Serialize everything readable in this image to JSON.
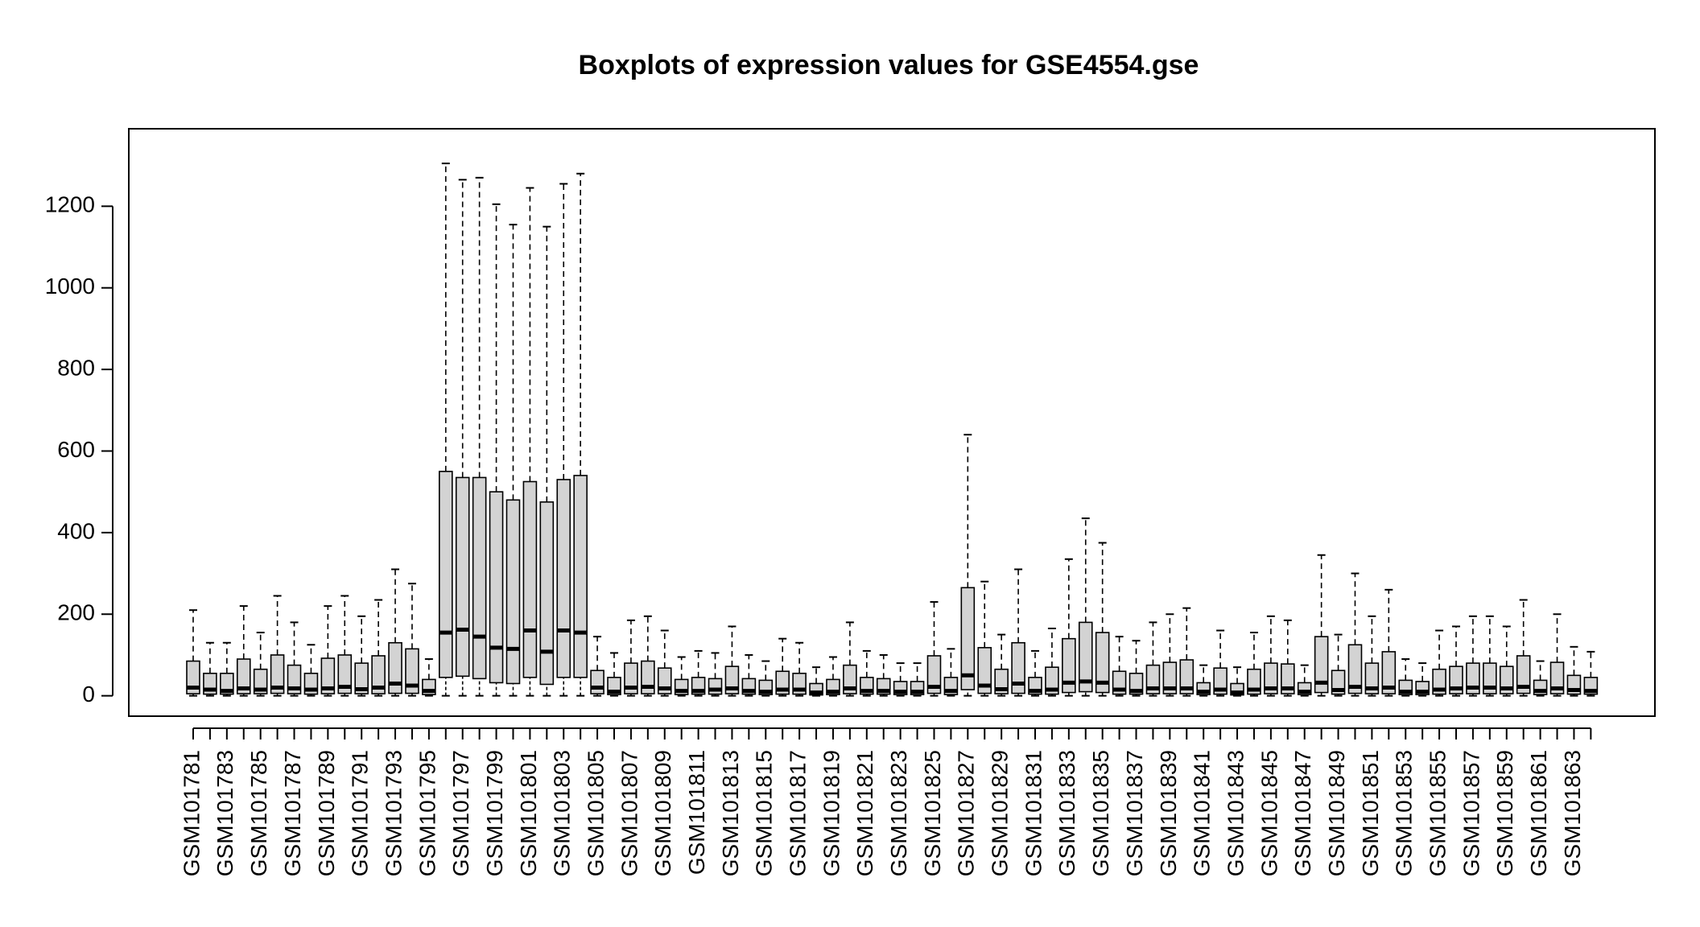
{
  "chart_data": {
    "type": "boxplot",
    "title": "Boxplots of expression values for GSE4554.gse",
    "xlabel": "",
    "ylabel": "",
    "ylim": [
      -50,
      1390
    ],
    "yticks": [
      0,
      200,
      400,
      600,
      800,
      1000,
      1200
    ],
    "grid": false,
    "legend": "none",
    "box_fill": "#d3d3d3",
    "line_color": "#000000",
    "categories": [
      "GSM101781",
      "GSM101782",
      "GSM101783",
      "GSM101784",
      "GSM101785",
      "GSM101786",
      "GSM101787",
      "GSM101788",
      "GSM101789",
      "GSM101790",
      "GSM101791",
      "GSM101792",
      "GSM101793",
      "GSM101794",
      "GSM101795",
      "GSM101796",
      "GSM101797",
      "GSM101798",
      "GSM101799",
      "GSM101800",
      "GSM101801",
      "GSM101802",
      "GSM101803",
      "GSM101804",
      "GSM101805",
      "GSM101806",
      "GSM101807",
      "GSM101808",
      "GSM101809",
      "GSM101810",
      "GSM101811",
      "GSM101812",
      "GSM101813",
      "GSM101814",
      "GSM101815",
      "GSM101816",
      "GSM101817",
      "GSM101818",
      "GSM101819",
      "GSM101820",
      "GSM101821",
      "GSM101822",
      "GSM101823",
      "GSM101824",
      "GSM101825",
      "GSM101826",
      "GSM101827",
      "GSM101828",
      "GSM101829",
      "GSM101830",
      "GSM101831",
      "GSM101832",
      "GSM101833",
      "GSM101834",
      "GSM101835",
      "GSM101836",
      "GSM101837",
      "GSM101838",
      "GSM101839",
      "GSM101840",
      "GSM101841",
      "GSM101842",
      "GSM101843",
      "GSM101844",
      "GSM101845",
      "GSM101846",
      "GSM101847",
      "GSM101848",
      "GSM101849",
      "GSM101850",
      "GSM101851",
      "GSM101852",
      "GSM101853",
      "GSM101854",
      "GSM101855",
      "GSM101856",
      "GSM101857",
      "GSM101858",
      "GSM101859",
      "GSM101860",
      "GSM101861",
      "GSM101862",
      "GSM101863",
      "GSM101864"
    ],
    "visible_tick_labels": [
      "GSM101781",
      "GSM101783",
      "GSM101785",
      "GSM101787",
      "GSM101789",
      "GSM101791",
      "GSM101793",
      "GSM101795",
      "GSM101797",
      "GSM101799",
      "GSM101801",
      "GSM101803",
      "GSM101805",
      "GSM101807",
      "GSM101809",
      "GSM101811",
      "GSM101813",
      "GSM101815",
      "GSM101817",
      "GSM101819",
      "GSM101821",
      "GSM101823",
      "GSM101825",
      "GSM101827",
      "GSM101829",
      "GSM101831",
      "GSM101833",
      "GSM101835",
      "GSM101837",
      "GSM101839",
      "GSM101841",
      "GSM101843",
      "GSM101845",
      "GSM101847",
      "GSM101849",
      "GSM101851",
      "GSM101853",
      "GSM101855",
      "GSM101857",
      "GSM101859",
      "GSM101861",
      "GSM101863"
    ],
    "boxes": [
      [
        0,
        5,
        20,
        85,
        210
      ],
      [
        0,
        4,
        15,
        55,
        130
      ],
      [
        0,
        4,
        12,
        55,
        130
      ],
      [
        0,
        5,
        18,
        90,
        220
      ],
      [
        0,
        5,
        15,
        65,
        155
      ],
      [
        0,
        6,
        20,
        100,
        245
      ],
      [
        0,
        5,
        18,
        75,
        180
      ],
      [
        0,
        4,
        15,
        55,
        125
      ],
      [
        0,
        5,
        18,
        92,
        220
      ],
      [
        0,
        6,
        22,
        100,
        245
      ],
      [
        0,
        5,
        16,
        80,
        195
      ],
      [
        0,
        5,
        20,
        98,
        235
      ],
      [
        0,
        6,
        30,
        130,
        310
      ],
      [
        0,
        6,
        25,
        115,
        275
      ],
      [
        0,
        3,
        12,
        40,
        90
      ],
      [
        0,
        45,
        155,
        550,
        1305
      ],
      [
        0,
        48,
        162,
        535,
        1265
      ],
      [
        0,
        42,
        145,
        535,
        1270
      ],
      [
        0,
        32,
        118,
        500,
        1205
      ],
      [
        0,
        30,
        115,
        480,
        1155
      ],
      [
        0,
        45,
        160,
        525,
        1245
      ],
      [
        0,
        28,
        108,
        475,
        1150
      ],
      [
        0,
        45,
        160,
        530,
        1255
      ],
      [
        0,
        45,
        155,
        540,
        1280
      ],
      [
        0,
        5,
        20,
        62,
        145
      ],
      [
        0,
        3,
        10,
        45,
        105
      ],
      [
        0,
        5,
        20,
        80,
        185
      ],
      [
        0,
        5,
        22,
        85,
        195
      ],
      [
        0,
        5,
        18,
        68,
        160
      ],
      [
        0,
        3,
        12,
        40,
        95
      ],
      [
        0,
        4,
        12,
        45,
        110
      ],
      [
        0,
        4,
        15,
        42,
        105
      ],
      [
        0,
        5,
        18,
        72,
        170
      ],
      [
        0,
        4,
        12,
        42,
        100
      ],
      [
        0,
        3,
        10,
        38,
        85
      ],
      [
        0,
        4,
        15,
        60,
        140
      ],
      [
        0,
        4,
        15,
        55,
        130
      ],
      [
        0,
        2,
        8,
        30,
        70
      ],
      [
        0,
        3,
        10,
        40,
        95
      ],
      [
        0,
        5,
        18,
        75,
        180
      ],
      [
        0,
        4,
        12,
        45,
        110
      ],
      [
        0,
        4,
        12,
        42,
        100
      ],
      [
        0,
        3,
        10,
        35,
        80
      ],
      [
        0,
        3,
        10,
        35,
        80
      ],
      [
        0,
        6,
        22,
        98,
        230
      ],
      [
        0,
        3,
        12,
        45,
        115
      ],
      [
        0,
        15,
        50,
        265,
        640
      ],
      [
        0,
        6,
        25,
        118,
        280
      ],
      [
        0,
        5,
        16,
        65,
        150
      ],
      [
        0,
        6,
        30,
        130,
        310
      ],
      [
        0,
        4,
        12,
        45,
        110
      ],
      [
        0,
        4,
        15,
        70,
        165
      ],
      [
        0,
        8,
        32,
        140,
        335
      ],
      [
        0,
        10,
        35,
        180,
        435
      ],
      [
        0,
        8,
        32,
        155,
        375
      ],
      [
        0,
        4,
        15,
        60,
        145
      ],
      [
        0,
        4,
        12,
        55,
        135
      ],
      [
        0,
        5,
        18,
        75,
        180
      ],
      [
        0,
        5,
        18,
        82,
        200
      ],
      [
        0,
        5,
        18,
        88,
        215
      ],
      [
        0,
        3,
        10,
        32,
        75
      ],
      [
        0,
        4,
        15,
        68,
        160
      ],
      [
        0,
        2,
        8,
        30,
        70
      ],
      [
        0,
        4,
        15,
        65,
        155
      ],
      [
        0,
        5,
        18,
        80,
        195
      ],
      [
        0,
        5,
        18,
        78,
        185
      ],
      [
        0,
        3,
        10,
        32,
        75
      ],
      [
        0,
        8,
        32,
        145,
        345
      ],
      [
        0,
        4,
        14,
        62,
        150
      ],
      [
        0,
        6,
        22,
        125,
        300
      ],
      [
        0,
        5,
        18,
        80,
        195
      ],
      [
        0,
        5,
        20,
        108,
        260
      ],
      [
        0,
        3,
        10,
        38,
        90
      ],
      [
        0,
        3,
        10,
        35,
        80
      ],
      [
        0,
        4,
        15,
        65,
        160
      ],
      [
        0,
        5,
        18,
        72,
        170
      ],
      [
        0,
        5,
        20,
        80,
        195
      ],
      [
        0,
        5,
        20,
        80,
        195
      ],
      [
        0,
        5,
        18,
        72,
        170
      ],
      [
        0,
        6,
        22,
        98,
        235
      ],
      [
        0,
        3,
        12,
        38,
        85
      ],
      [
        0,
        5,
        18,
        82,
        200
      ],
      [
        0,
        4,
        14,
        50,
        120
      ],
      [
        0,
        4,
        12,
        45,
        108
      ]
    ]
  }
}
